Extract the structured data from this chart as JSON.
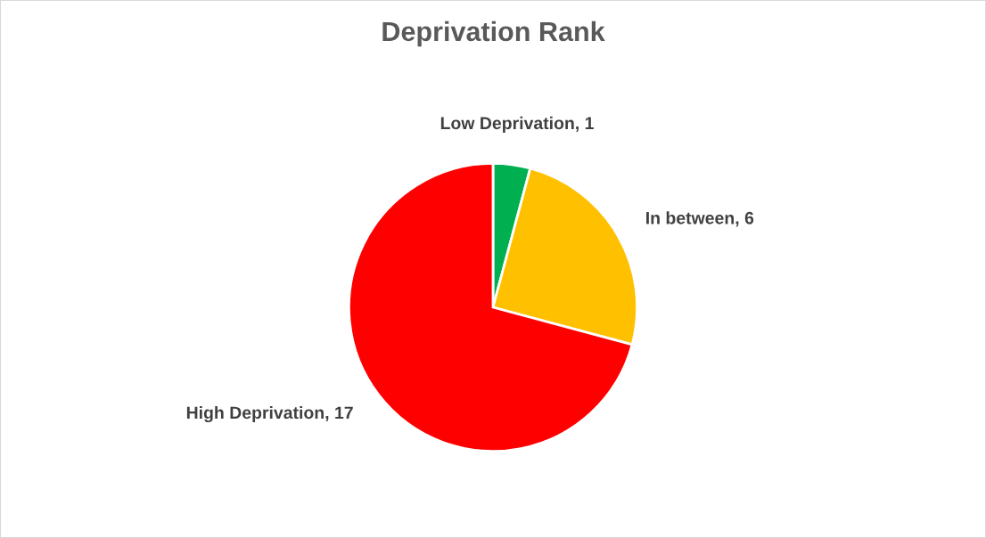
{
  "chart_data": {
    "type": "pie",
    "title": "Deprivation Rank",
    "categories": [
      "Low Deprivation",
      "In between",
      "High Deprivation"
    ],
    "values": [
      1,
      6,
      17
    ],
    "value_labels": [
      ", 1",
      ", 6",
      ", 17"
    ],
    "colors": [
      "#00b050",
      "#ffc000",
      "#ff0000"
    ],
    "legend": false
  }
}
